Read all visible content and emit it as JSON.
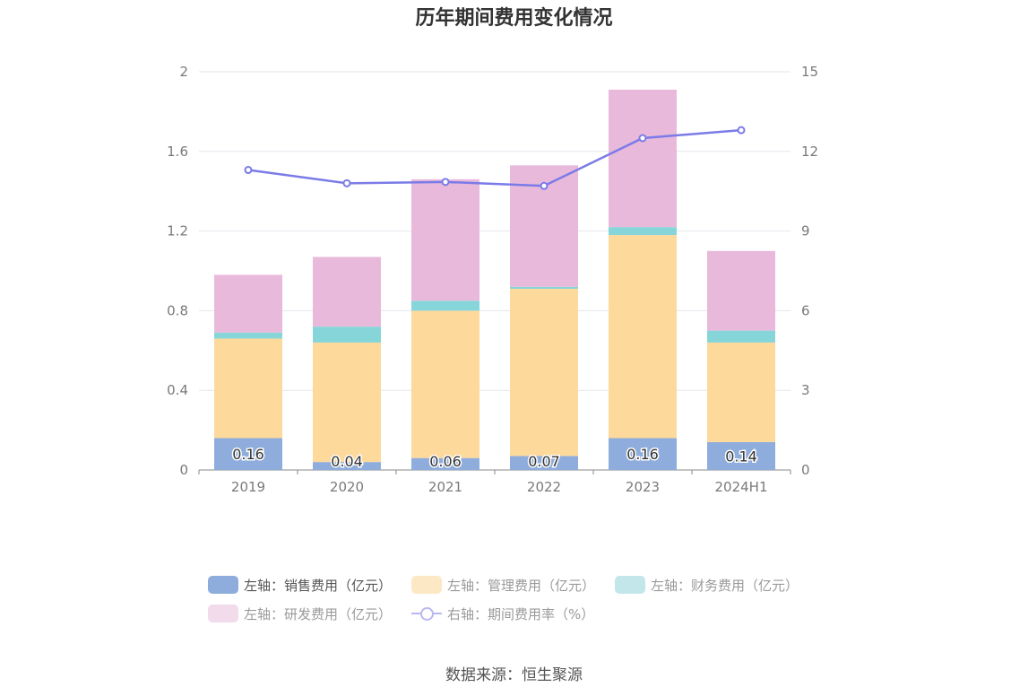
{
  "title": "历年期间费用变化情况",
  "source": "数据来源：恒生聚源",
  "legend": [
    {
      "label": "左轴：销售费用（亿元）",
      "color": "#8eaddc",
      "kind": "bar",
      "dim": false
    },
    {
      "label": "左轴：管理费用（亿元）",
      "color": "#fde8c6",
      "kind": "bar",
      "dim": true
    },
    {
      "label": "左轴：财务费用（亿元）",
      "color": "#c2e6ea",
      "kind": "bar",
      "dim": true
    },
    {
      "label": "左轴：研发费用（亿元）",
      "color": "#f2dcec",
      "kind": "bar",
      "dim": true
    },
    {
      "label": "右轴：期间费用率（%）",
      "color": "#b9b8f0",
      "kind": "line",
      "dim": true
    }
  ],
  "chart_data": {
    "type": "bar",
    "stacked": true,
    "categories": [
      "2019",
      "2020",
      "2021",
      "2022",
      "2023",
      "2024H1"
    ],
    "series": [
      {
        "name": "左轴：销售费用（亿元）",
        "axis": "left",
        "color": "#8eaddc",
        "values": [
          0.16,
          0.04,
          0.06,
          0.07,
          0.16,
          0.14
        ],
        "labels": [
          "0.16",
          "0.04",
          "0.06",
          "0.07",
          "0.16",
          "0.14"
        ]
      },
      {
        "name": "左轴：管理费用（亿元）",
        "axis": "left",
        "color": "#fed99c",
        "values": [
          0.5,
          0.6,
          0.74,
          0.84,
          1.02,
          0.5
        ]
      },
      {
        "name": "左轴：财务费用（亿元）",
        "axis": "left",
        "color": "#86d5d8",
        "values": [
          0.03,
          0.08,
          0.05,
          0.01,
          0.04,
          0.06
        ]
      },
      {
        "name": "左轴：研发费用（亿元）",
        "axis": "left",
        "color": "#e8b9db",
        "values": [
          0.29,
          0.35,
          0.61,
          0.61,
          0.69,
          0.4
        ]
      },
      {
        "name": "右轴：期间费用率（%）",
        "axis": "right",
        "type": "line",
        "color": "#7b7be8",
        "values": [
          11.3,
          10.8,
          10.85,
          10.7,
          12.5,
          12.8
        ]
      }
    ],
    "ylim_left": [
      0,
      2
    ],
    "ylim_right": [
      0,
      15
    ],
    "yticks_left": [
      "0",
      "0.4",
      "0.8",
      "1.2",
      "1.6",
      "2"
    ],
    "yticks_right": [
      "0",
      "3",
      "6",
      "9",
      "12",
      "15"
    ],
    "grid": true,
    "legend_position": "bottom"
  }
}
